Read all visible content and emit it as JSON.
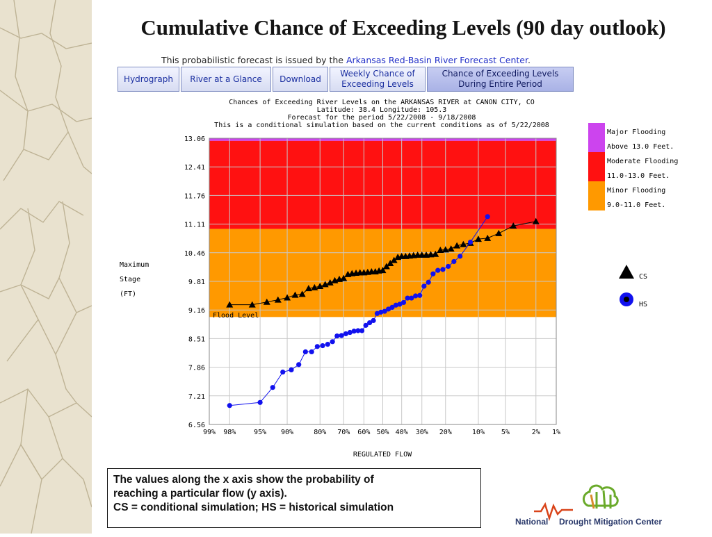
{
  "slide": {
    "title": "Cumulative Chance of Exceeding Levels (90 day outlook)",
    "issued_prefix": "This probabilistic forecast is issued by the ",
    "issued_link": "Arkansas Red-Basin River Forecast Center",
    "issued_suffix": "."
  },
  "tabs": [
    {
      "line1": "Hydrograph",
      "line2": ""
    },
    {
      "line1": "River at a Glance",
      "line2": ""
    },
    {
      "line1": "Download",
      "line2": ""
    },
    {
      "line1": "Weekly Chance of",
      "line2": "Exceeding Levels"
    },
    {
      "line1": "Chance of Exceeding Levels",
      "line2": "During Entire Period"
    }
  ],
  "chart_data": {
    "type": "line",
    "header": [
      "Chances of Exceeding River Levels on the ARKANSAS RIVER at CANON CITY, CO",
      "Latitude: 38.4    Longitude:  105.3",
      "Forecast for the period 5/22/2008 - 9/18/2008",
      "This is a conditional simulation based on the current conditions as of 5/22/2008"
    ],
    "ylabel": [
      "Maximum",
      "Stage",
      "(FT)"
    ],
    "xlabel": "REGULATED FLOW",
    "flood_level_label": "Flood Level",
    "ylim": [
      6.56,
      13.06
    ],
    "y_ticks": [
      "6.56",
      "7.21",
      "7.86",
      "8.51",
      "9.16",
      "9.81",
      "10.46",
      "11.11",
      "11.76",
      "12.41",
      "13.06"
    ],
    "x_ticks": [
      "99%",
      "98%",
      "95%",
      "90%",
      "80%",
      "70%",
      "60%",
      "50%",
      "40%",
      "30%",
      "20%",
      "10%",
      "5%",
      "2%",
      "1%"
    ],
    "x_scale": "normal-probability (exceedance %)",
    "grid": true,
    "bands": [
      {
        "name": "Major Flooding",
        "range_text": "Above 13.0 Feet.",
        "from": 13.0,
        "to": 13.06,
        "color": "#cc44ee"
      },
      {
        "name": "Moderate Flooding",
        "range_text": "11.0-13.0 Feet.",
        "from": 11.0,
        "to": 13.0,
        "color": "#ff1111"
      },
      {
        "name": "Minor Flooding",
        "range_text": "9.0-11.0 Feet.",
        "from": 9.0,
        "to": 11.0,
        "color": "#ff9900"
      }
    ],
    "series": [
      {
        "name": "CS",
        "marker": "triangle",
        "color": "#000000",
        "points": [
          [
            98,
            9.28
          ],
          [
            96,
            9.28
          ],
          [
            94,
            9.34
          ],
          [
            92,
            9.39
          ],
          [
            90,
            9.44
          ],
          [
            88,
            9.5
          ],
          [
            86,
            9.52
          ],
          [
            84,
            9.65
          ],
          [
            82,
            9.67
          ],
          [
            80,
            9.7
          ],
          [
            78,
            9.74
          ],
          [
            76,
            9.78
          ],
          [
            74,
            9.83
          ],
          [
            72,
            9.86
          ],
          [
            70,
            9.88
          ],
          [
            68,
            9.97
          ],
          [
            66,
            9.99
          ],
          [
            64,
            10.0
          ],
          [
            62,
            10.01
          ],
          [
            60,
            10.01
          ],
          [
            58,
            10.02
          ],
          [
            56,
            10.03
          ],
          [
            54,
            10.03
          ],
          [
            52,
            10.05
          ],
          [
            50,
            10.06
          ],
          [
            48,
            10.15
          ],
          [
            46,
            10.22
          ],
          [
            44,
            10.29
          ],
          [
            42,
            10.36
          ],
          [
            40,
            10.38
          ],
          [
            38,
            10.38
          ],
          [
            36,
            10.39
          ],
          [
            34,
            10.4
          ],
          [
            32,
            10.41
          ],
          [
            30,
            10.41
          ],
          [
            28,
            10.41
          ],
          [
            26,
            10.42
          ],
          [
            24,
            10.43
          ],
          [
            22,
            10.52
          ],
          [
            20,
            10.53
          ],
          [
            18,
            10.55
          ],
          [
            16,
            10.62
          ],
          [
            14,
            10.65
          ],
          [
            12,
            10.68
          ],
          [
            10,
            10.77
          ],
          [
            8,
            10.79
          ],
          [
            6,
            10.9
          ],
          [
            4,
            11.07
          ],
          [
            2,
            11.17
          ]
        ]
      },
      {
        "name": "HS",
        "marker": "circle",
        "color": "#1111ee",
        "points": [
          [
            98,
            6.99
          ],
          [
            95,
            7.06
          ],
          [
            93,
            7.4
          ],
          [
            91,
            7.75
          ],
          [
            89,
            7.8
          ],
          [
            87,
            7.92
          ],
          [
            85,
            8.21
          ],
          [
            83,
            8.21
          ],
          [
            81,
            8.33
          ],
          [
            79,
            8.35
          ],
          [
            77,
            8.38
          ],
          [
            75,
            8.44
          ],
          [
            73,
            8.57
          ],
          [
            71,
            8.58
          ],
          [
            69,
            8.62
          ],
          [
            67,
            8.65
          ],
          [
            65,
            8.68
          ],
          [
            63,
            8.69
          ],
          [
            61,
            8.69
          ],
          [
            59,
            8.81
          ],
          [
            57,
            8.87
          ],
          [
            55,
            8.92
          ],
          [
            53,
            9.08
          ],
          [
            51,
            9.11
          ],
          [
            49,
            9.13
          ],
          [
            47,
            9.18
          ],
          [
            45,
            9.22
          ],
          [
            43,
            9.27
          ],
          [
            41,
            9.29
          ],
          [
            39,
            9.33
          ],
          [
            37,
            9.43
          ],
          [
            35,
            9.43
          ],
          [
            33,
            9.48
          ],
          [
            31,
            9.49
          ],
          [
            29,
            9.7
          ],
          [
            27,
            9.79
          ],
          [
            25,
            9.98
          ],
          [
            23,
            10.06
          ],
          [
            21,
            10.08
          ],
          [
            19,
            10.15
          ],
          [
            17,
            10.26
          ],
          [
            15,
            10.38
          ],
          [
            12,
            10.7
          ],
          [
            8,
            11.28
          ]
        ]
      }
    ]
  },
  "caption": {
    "line1": "The values along the x axis show the probability of",
    "line2": "reaching a particular flow (y axis).",
    "line3": "CS = conditional simulation; HS = historical simulation"
  },
  "logo": {
    "text_part1": "National",
    "text_part2": "Drought Mitigation Center"
  }
}
